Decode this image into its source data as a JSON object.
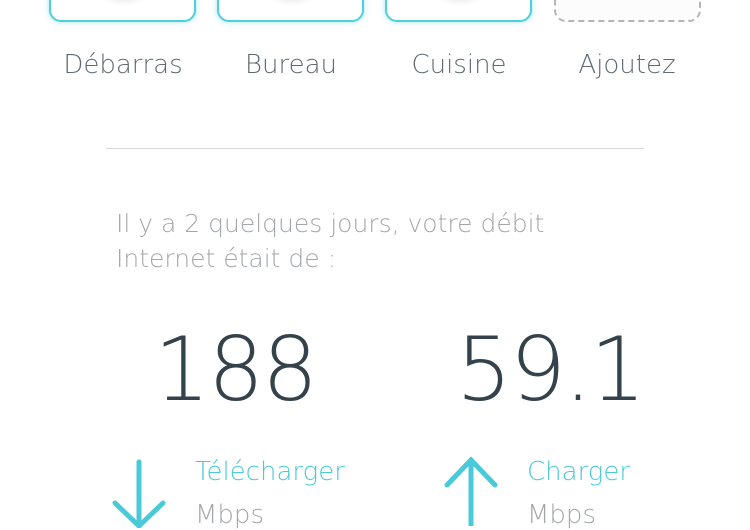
{
  "rooms": [
    {
      "label": "Débarras"
    },
    {
      "label": "Bureau"
    },
    {
      "label": "Cuisine"
    },
    {
      "label": "Ajoutez"
    }
  ],
  "speed_note": "Il y a 2 quelques jours, votre débit Internet était de :",
  "download": {
    "value": "188",
    "label": "Télécharger",
    "unit": "Mbps",
    "icon": "arrow-down-icon"
  },
  "upload": {
    "value": "59.1",
    "label": "Charger",
    "unit": "Mbps",
    "icon": "arrow-up-icon"
  },
  "colors": {
    "accent": "#4ac9d8",
    "text": "#5f6a70",
    "number": "#34434b",
    "muted": "#a3a7aa"
  }
}
